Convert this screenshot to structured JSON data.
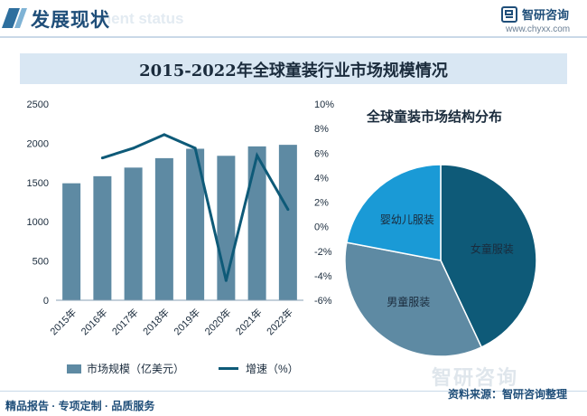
{
  "header": {
    "title": "发展现状",
    "subtitle": "ment status",
    "brand_name": "智研咨询",
    "brand_url": "www.chyxx.com"
  },
  "chart_data": [
    {
      "type": "bar",
      "title": "2015-2022年全球童装行业市场规模情况",
      "categories": [
        "2015年",
        "2016年",
        "2017年",
        "2018年",
        "2019年",
        "2020年",
        "2021年",
        "2022年"
      ],
      "series": [
        {
          "name": "市场规模（亿美元）",
          "type": "bar",
          "axis": "left",
          "values": [
            1490,
            1580,
            1690,
            1810,
            1930,
            1840,
            1960,
            1980
          ]
        },
        {
          "name": "增速（%）",
          "type": "line",
          "axis": "right",
          "values": [
            null,
            5.6,
            6.4,
            7.5,
            6.4,
            -4.4,
            5.8,
            1.4
          ]
        }
      ],
      "ylim": [
        0,
        2500
      ],
      "yticks": [
        0,
        500,
        1000,
        1500,
        2000,
        2500
      ],
      "y2lim": [
        -6,
        10
      ],
      "y2ticks": [
        "10%",
        "8%",
        "6%",
        "4%",
        "2%",
        "0%",
        "-2%",
        "-4%",
        "-6%"
      ],
      "colors": {
        "bar": "#5e8aa3",
        "line": "#0e5a78"
      },
      "legend": "bottom"
    },
    {
      "type": "pie",
      "title": "全球童装市场结构分布",
      "labels": [
        "女童服装",
        "男童服装",
        "婴幼儿服装"
      ],
      "values": [
        43,
        35,
        22
      ],
      "colors": [
        "#0e5a78",
        "#5e8aa3",
        "#1a9ad6"
      ]
    }
  ],
  "footer": {
    "left": "精品报告 · 专项定制 · 品质服务",
    "source": "资料来源：智研咨询整理",
    "watermark": "智研咨询"
  }
}
